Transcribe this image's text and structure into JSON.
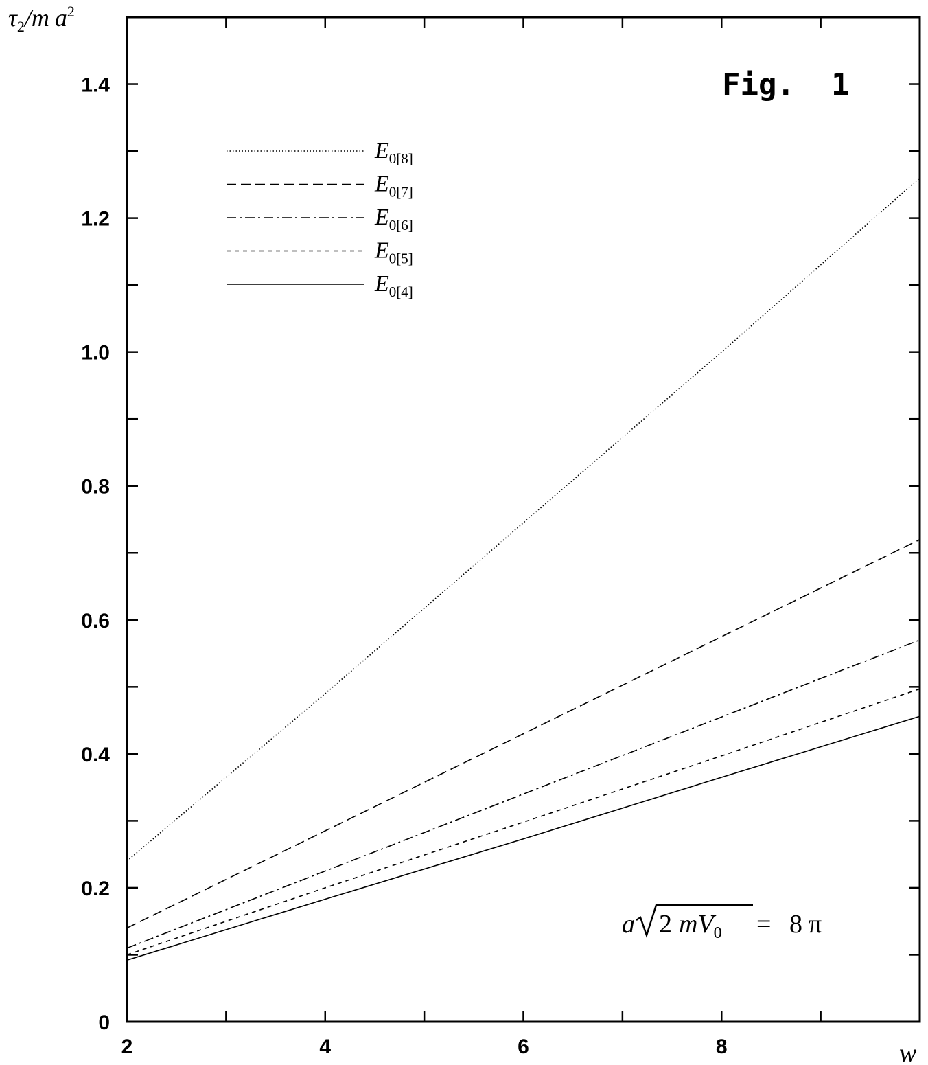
{
  "chart_data": {
    "type": "line",
    "title": "Fig.  1",
    "annotation": {
      "lhs_var": "a",
      "radicand_coef": "2",
      "radicand_m": "m",
      "radicand_V": "V",
      "radicand_sub": "0",
      "rhs_num": "8",
      "rhs_pi": "π"
    },
    "ylabel": {
      "tau": "τ",
      "sub": "2",
      "rest": "/m",
      "a": "a",
      "sup": "2"
    },
    "xlabel": "w",
    "xlim": [
      2,
      10
    ],
    "ylim": [
      0,
      1.5
    ],
    "x_ticks": [
      2,
      4,
      6,
      8
    ],
    "x_tick_labels": [
      "2",
      "4",
      "6",
      "8"
    ],
    "x_minor_ticks": [
      3,
      5,
      7,
      9
    ],
    "y_ticks": [
      0,
      0.2,
      0.4,
      0.6,
      0.8,
      1.0,
      1.2,
      1.4
    ],
    "y_tick_labels": [
      "0",
      "0.2",
      "0.4",
      "0.6",
      "0.8",
      "1.0",
      "1.2",
      "1.4"
    ],
    "y_minor_ticks": [
      0.1,
      0.3,
      0.5,
      0.7,
      0.9,
      1.1,
      1.3
    ],
    "legend_position": "upper-left",
    "series": [
      {
        "name": "E",
        "sub": "0[8]",
        "style": "dotted",
        "x": [
          2,
          4,
          6,
          8,
          10
        ],
        "y": [
          0.24,
          0.49,
          0.745,
          1.0,
          1.26
        ]
      },
      {
        "name": "E",
        "sub": "0[7]",
        "style": "dashed",
        "x": [
          2,
          4,
          6,
          8,
          10
        ],
        "y": [
          0.14,
          0.285,
          0.43,
          0.575,
          0.72
        ]
      },
      {
        "name": "E",
        "sub": "0[6]",
        "style": "dashdot",
        "x": [
          2,
          4,
          6,
          8,
          10
        ],
        "y": [
          0.11,
          0.225,
          0.34,
          0.455,
          0.57
        ]
      },
      {
        "name": "E",
        "sub": "0[5]",
        "style": "short-dashed",
        "x": [
          2,
          4,
          6,
          8,
          10
        ],
        "y": [
          0.1,
          0.2,
          0.298,
          0.397,
          0.497
        ]
      },
      {
        "name": "E",
        "sub": "0[4]",
        "style": "solid",
        "x": [
          2,
          4,
          6,
          8,
          10
        ],
        "y": [
          0.092,
          0.183,
          0.273,
          0.365,
          0.456
        ]
      }
    ]
  }
}
